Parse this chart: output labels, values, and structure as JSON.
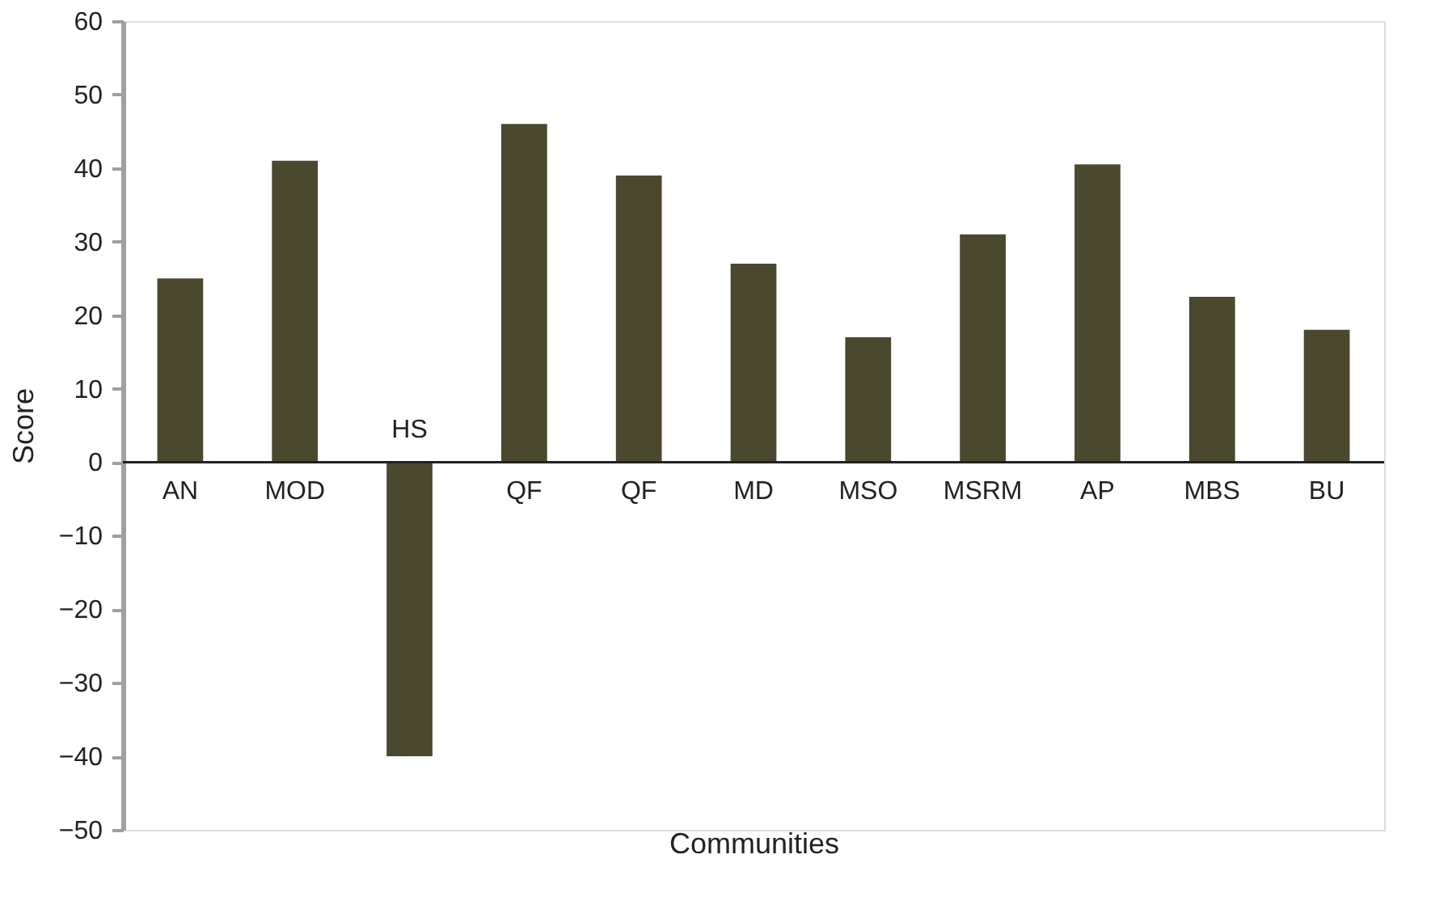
{
  "chart_data": {
    "type": "bar",
    "xlabel": "Communities",
    "ylabel": "Score",
    "categories": [
      "AN",
      "MOD",
      "HS",
      "QF",
      "QF",
      "MD",
      "MSO",
      "MSRM",
      "AP",
      "MBS",
      "BU"
    ],
    "values": [
      25,
      41,
      -40,
      46,
      39,
      27,
      17,
      31,
      40.5,
      22.5,
      18
    ],
    "color": "#4a482e",
    "ylim": [
      -50,
      60
    ],
    "yticks": [
      -50,
      -40,
      -30,
      -20,
      -10,
      0,
      10,
      20,
      30,
      40,
      50,
      60
    ],
    "grid": false
  }
}
